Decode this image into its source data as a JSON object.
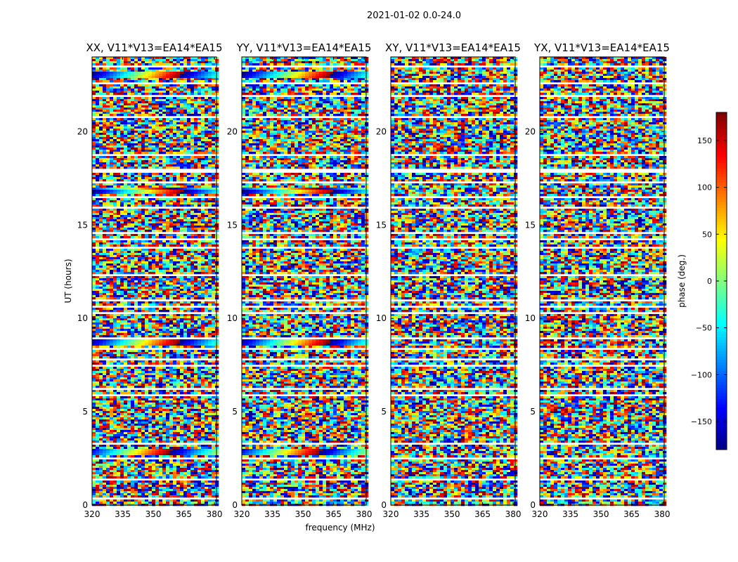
{
  "figure": {
    "suptitle": "2021-01-02 0.0-24.0",
    "xlabel": "frequency (MHz)",
    "ylabel": "UT (hours)"
  },
  "chart_data": [
    {
      "type": "heatmap",
      "title": "XX, V11*V13=EA14*EA15",
      "xlim": [
        320,
        381
      ],
      "ylim": [
        0,
        24
      ],
      "xticks": [
        320,
        335,
        350,
        365,
        380
      ],
      "yticks": [
        0,
        5,
        10,
        15,
        20
      ],
      "value": "phase (deg.)",
      "coherent_bands_ut": [
        2.8,
        16.8,
        8.7,
        23.0
      ]
    },
    {
      "type": "heatmap",
      "title": "YY, V11*V13=EA14*EA15",
      "xlim": [
        320,
        381
      ],
      "ylim": [
        0,
        24
      ],
      "xticks": [
        320,
        335,
        350,
        365,
        380
      ],
      "yticks": [
        0,
        5,
        10,
        15,
        20
      ],
      "value": "phase (deg.)",
      "coherent_bands_ut": [
        2.8,
        16.8,
        8.7,
        23.0
      ]
    },
    {
      "type": "heatmap",
      "title": "XY, V11*V13=EA14*EA15",
      "xlim": [
        320,
        381
      ],
      "ylim": [
        0,
        24
      ],
      "xticks": [
        320,
        335,
        350,
        365,
        380
      ],
      "yticks": [
        0,
        5,
        10,
        15,
        20
      ],
      "value": "phase (deg.)",
      "coherent_bands_ut": []
    },
    {
      "type": "heatmap",
      "title": "YX, V11*V13=EA14*EA15",
      "xlim": [
        320,
        381
      ],
      "ylim": [
        0,
        24
      ],
      "xticks": [
        320,
        335,
        350,
        365,
        380
      ],
      "yticks": [
        0,
        5,
        10,
        15,
        20
      ],
      "value": "phase (deg.)",
      "coherent_bands_ut": []
    }
  ],
  "colorbar": {
    "label": "phase (deg.)",
    "range": [
      -180,
      180
    ],
    "ticks": [
      -150,
      -100,
      -50,
      0,
      50,
      100,
      150
    ],
    "tick_labels": [
      "−150",
      "−100",
      "−50",
      "0",
      "50",
      "100",
      "150"
    ],
    "colormap": "jet"
  },
  "flagged_ut_rows": [
    0.4,
    1.4,
    2.5,
    3.3,
    5.9,
    6.2,
    7.5,
    7.8,
    8.4,
    8.9,
    10.3,
    10.6,
    11.0,
    12.3,
    13.8,
    14.2,
    14.6,
    15.9,
    16.5,
    17.3,
    17.8,
    18.0,
    18.8,
    20.8,
    21.9,
    22.2,
    22.6,
    23.5
  ]
}
